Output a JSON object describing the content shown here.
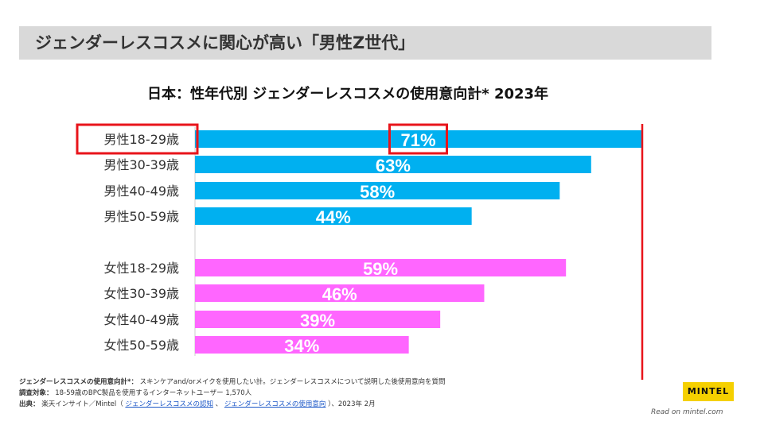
{
  "header": {
    "title": "ジェンダーレスコスメに関心が高い「男性Z世代」"
  },
  "chart_data": {
    "type": "bar",
    "orientation": "horizontal",
    "title": "日本：性年代別  ジェンダーレスコスメの使用意向計*  2023年",
    "categories": [
      "男性18-29歳",
      "男性30-39歳",
      "男性40-49歳",
      "男性50-59歳",
      "女性18-29歳",
      "女性30-39歳",
      "女性40-49歳",
      "女性50-59歳"
    ],
    "values": [
      71,
      63,
      58,
      44,
      59,
      46,
      39,
      34
    ],
    "value_labels": [
      "71%",
      "63%",
      "58%",
      "44%",
      "59%",
      "46%",
      "39%",
      "34%"
    ],
    "groups": [
      "male",
      "male",
      "male",
      "male",
      "female",
      "female",
      "female",
      "female"
    ],
    "colors": {
      "male": "#00b0f0",
      "female": "#ff66ff",
      "highlight": "#e8141b"
    },
    "xlim": [
      0,
      71
    ],
    "highlight_index": 0
  },
  "footnotes": {
    "line1_label": "ジェンダーレスコスメの使用意向計*：",
    "line1_text": "スキンケアand/orメイクを使用したい計。ジェンダーレスコスメについて説明した後使用意向を質問",
    "line2_label": "調査対象：",
    "line2_text": "18-59歳のBPC製品を使用するインターネットユーザー 1,570人",
    "line3_label": "出典：",
    "line3_text_a": "楽天インサイト／Mintel（",
    "line3_link1": "ジェンダーレスコスメの認知",
    "line3_sep": "、",
    "line3_link2": "ジェンダーレスコスメの使用意向",
    "line3_text_b": "）、2023年 2月"
  },
  "branding": {
    "logo": "MINTEL",
    "read_on": "Read on mintel.com"
  }
}
